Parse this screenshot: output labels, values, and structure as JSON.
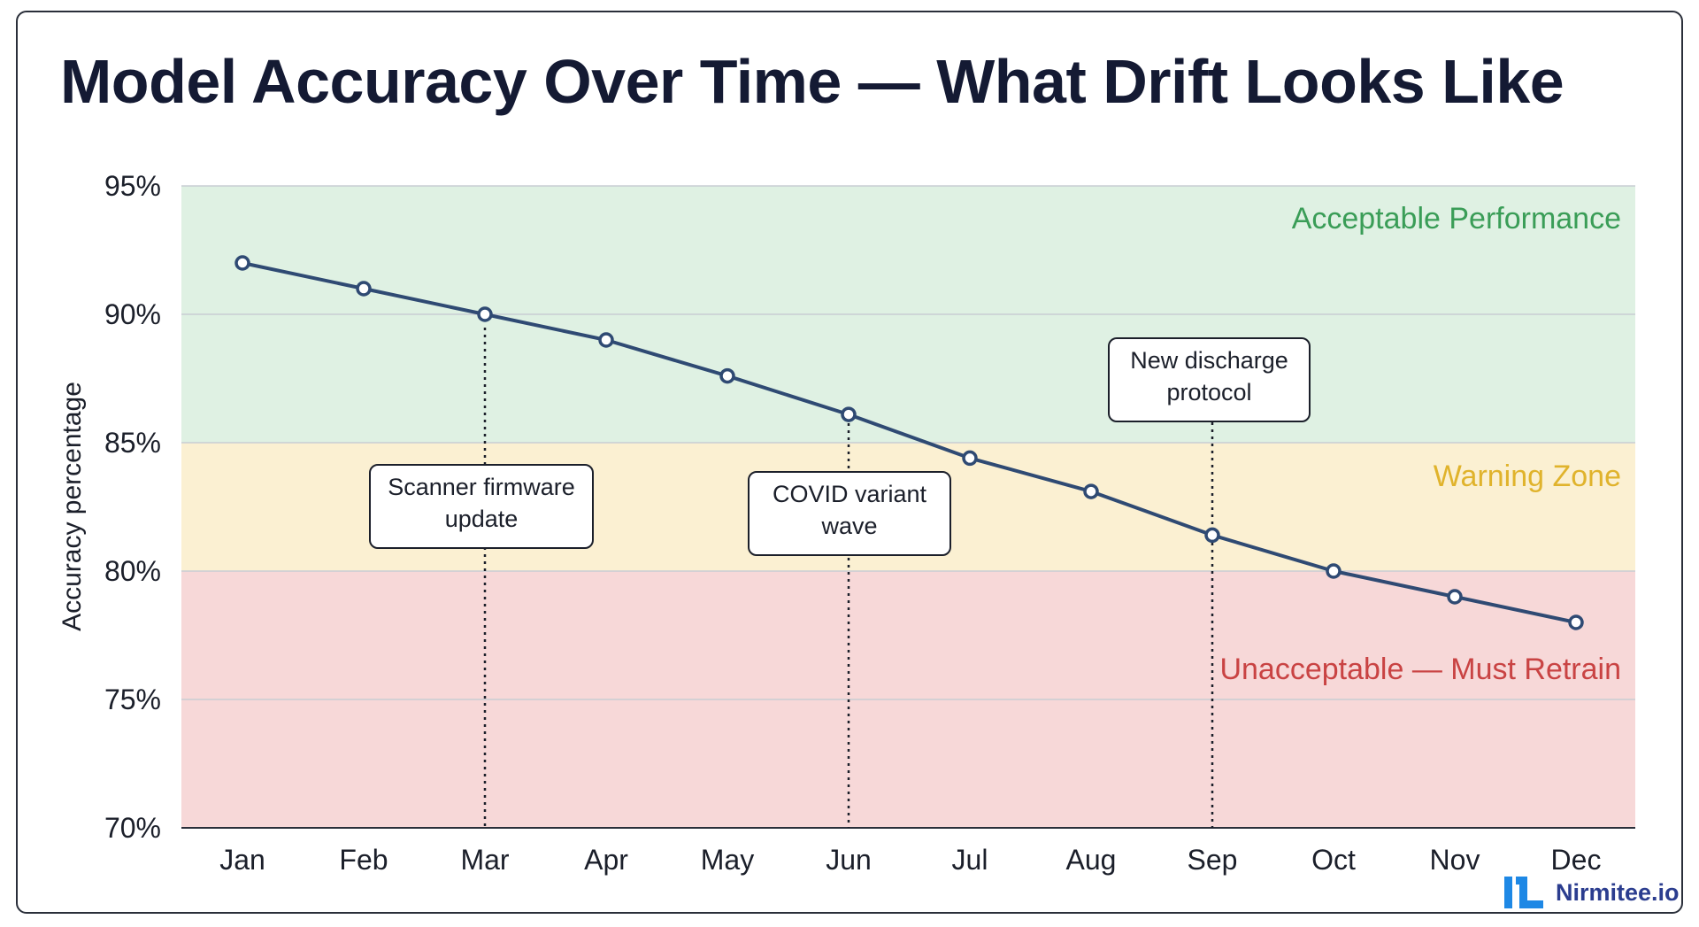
{
  "title": "Model Accuracy Over Time — What Drift Looks Like",
  "brand": {
    "name": "Nirmitee.io",
    "logo_color": "#1e88e5"
  },
  "chart_data": {
    "type": "line",
    "title": "Model Accuracy Over Time — What Drift Looks Like",
    "xlabel": "",
    "ylabel": "Accuracy percentage",
    "categories": [
      "Jan",
      "Feb",
      "Mar",
      "Apr",
      "May",
      "Jun",
      "Jul",
      "Aug",
      "Sep",
      "Oct",
      "Nov",
      "Dec"
    ],
    "series": [
      {
        "values": [
          92,
          91,
          90,
          89,
          87.6,
          86.1,
          84.4,
          83.1,
          81.4,
          80,
          79,
          78
        ],
        "color": "#2f4a73"
      }
    ],
    "ylim": [
      70,
      95
    ],
    "yticks": [
      95,
      90,
      85,
      80,
      75,
      70
    ],
    "ytick_labels": [
      "95%",
      "90%",
      "85%",
      "80%",
      "75%",
      "70%"
    ],
    "grid": true,
    "zones": [
      {
        "label": "Acceptable Performance",
        "from": 85,
        "to": 95,
        "fill": "#dff1e3",
        "text_color": "#3a9d57"
      },
      {
        "label": "Warning Zone",
        "from": 80,
        "to": 85,
        "fill": "#fbf0d2",
        "text_color": "#e0b32c"
      },
      {
        "label": "Unacceptable — Must Retrain",
        "from": 70,
        "to": 80,
        "fill": "#f7d8d8",
        "text_color": "#c94343"
      }
    ],
    "annotations": [
      {
        "x": "Mar",
        "lines": [
          "Scanner firmware",
          "update"
        ]
      },
      {
        "x": "Jun",
        "lines": [
          "COVID variant",
          "wave"
        ]
      },
      {
        "x": "Sep",
        "lines": [
          "New discharge",
          "protocol"
        ]
      }
    ]
  }
}
